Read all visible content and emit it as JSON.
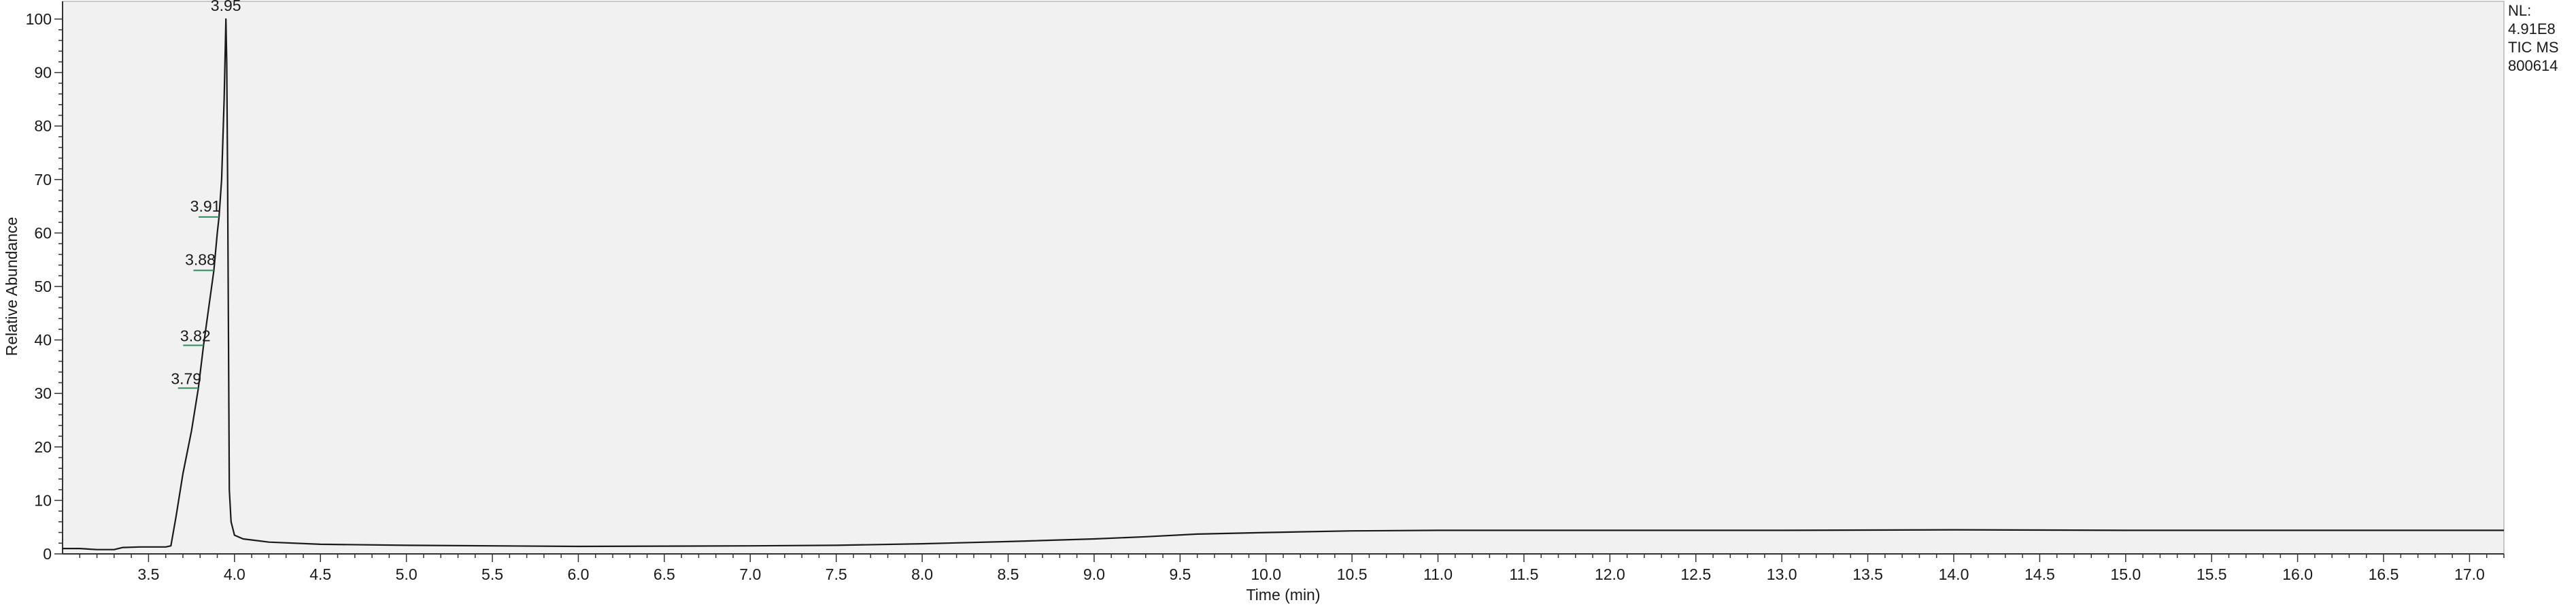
{
  "chart_data": {
    "type": "line",
    "title": "",
    "xlabel": "Time (min)",
    "ylabel": "Relative Abundance",
    "xlim": [
      3.0,
      17.2
    ],
    "ylim": [
      0,
      100
    ],
    "x_ticks": [
      "3.5",
      "4.0",
      "4.5",
      "5.0",
      "5.5",
      "6.0",
      "6.5",
      "7.0",
      "7.5",
      "8.0",
      "8.5",
      "9.0",
      "9.5",
      "10.0",
      "10.5",
      "11.0",
      "11.5",
      "12.0",
      "12.5",
      "13.0",
      "13.5",
      "14.0",
      "14.5",
      "15.0",
      "15.5",
      "16.0",
      "16.5",
      "17.0"
    ],
    "y_ticks": [
      "0",
      "10",
      "20",
      "30",
      "40",
      "50",
      "60",
      "70",
      "80",
      "90",
      "100"
    ],
    "grid": false,
    "background_color": "#f1f1f1",
    "line_color": "#1a1a1a",
    "label_tick_color": "#2e8b57",
    "series": [
      {
        "x": [
          3.0,
          3.1,
          3.2,
          3.3,
          3.35,
          3.45,
          3.6,
          3.63,
          3.66,
          3.7,
          3.75,
          3.79,
          3.82,
          3.85,
          3.88,
          3.9,
          3.91,
          3.925,
          3.94,
          3.95,
          3.955,
          3.96,
          3.965,
          3.97,
          3.98,
          4.0,
          4.05,
          4.2,
          4.5,
          5.0,
          6.0,
          7.0,
          7.5,
          8.0,
          8.5,
          9.0,
          9.3,
          9.6,
          10.0,
          10.5,
          11.0,
          12.0,
          13.0,
          14.0,
          15.0,
          16.0,
          17.2
        ],
        "y": [
          1.0,
          1.0,
          0.8,
          0.8,
          1.2,
          1.3,
          1.3,
          1.5,
          7,
          15,
          23,
          31,
          39,
          46,
          53,
          60,
          63,
          70,
          85,
          100,
          92,
          70,
          40,
          12,
          6,
          3.5,
          2.8,
          2.2,
          1.8,
          1.6,
          1.4,
          1.5,
          1.6,
          1.9,
          2.3,
          2.8,
          3.2,
          3.7,
          4.0,
          4.3,
          4.4,
          4.4,
          4.4,
          4.5,
          4.4,
          4.4,
          4.4
        ]
      }
    ],
    "peak_labels": [
      {
        "x": 3.79,
        "y": 31,
        "label": "3.79"
      },
      {
        "x": 3.82,
        "y": 39,
        "label": "3.82"
      },
      {
        "x": 3.88,
        "y": 53,
        "label": "3.88"
      },
      {
        "x": 3.91,
        "y": 63,
        "label": "3.91"
      },
      {
        "x": 3.95,
        "y": 100,
        "label": "3.95"
      }
    ]
  },
  "nl_info": {
    "line1": "NL:",
    "line2": "4.91E8",
    "line3": "TIC  MS",
    "line4": "800614"
  }
}
